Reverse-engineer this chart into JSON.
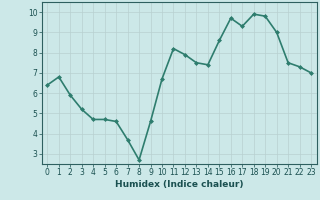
{
  "x": [
    0,
    1,
    2,
    3,
    4,
    5,
    6,
    7,
    8,
    9,
    10,
    11,
    12,
    13,
    14,
    15,
    16,
    17,
    18,
    19,
    20,
    21,
    22,
    23
  ],
  "y": [
    6.4,
    6.8,
    5.9,
    5.2,
    4.7,
    4.7,
    4.6,
    3.7,
    2.7,
    4.6,
    6.7,
    8.2,
    7.9,
    7.5,
    7.4,
    8.6,
    9.7,
    9.3,
    9.9,
    9.8,
    9.0,
    7.5,
    7.3,
    7.0
  ],
  "line_color": "#2e7d6e",
  "marker": "D",
  "marker_size": 2.0,
  "bg_color": "#cce8e8",
  "grid_color": "#b8d0d0",
  "title": "",
  "xlabel": "Humidex (Indice chaleur)",
  "ylabel": "",
  "xlim": [
    -0.5,
    23.5
  ],
  "ylim": [
    2.5,
    10.5
  ],
  "yticks": [
    3,
    4,
    5,
    6,
    7,
    8,
    9,
    10
  ],
  "xticks": [
    0,
    1,
    2,
    3,
    4,
    5,
    6,
    7,
    8,
    9,
    10,
    11,
    12,
    13,
    14,
    15,
    16,
    17,
    18,
    19,
    20,
    21,
    22,
    23
  ],
  "xtick_labels": [
    "0",
    "1",
    "2",
    "3",
    "4",
    "5",
    "6",
    "7",
    "8",
    "9",
    "10",
    "11",
    "12",
    "13",
    "14",
    "15",
    "16",
    "17",
    "18",
    "19",
    "20",
    "21",
    "22",
    "23"
  ],
  "tick_color": "#1a5050",
  "label_color": "#1a5050",
  "axis_color": "#2e6060",
  "xlabel_fontsize": 6.5,
  "tick_fontsize": 5.5,
  "line_width": 1.2
}
